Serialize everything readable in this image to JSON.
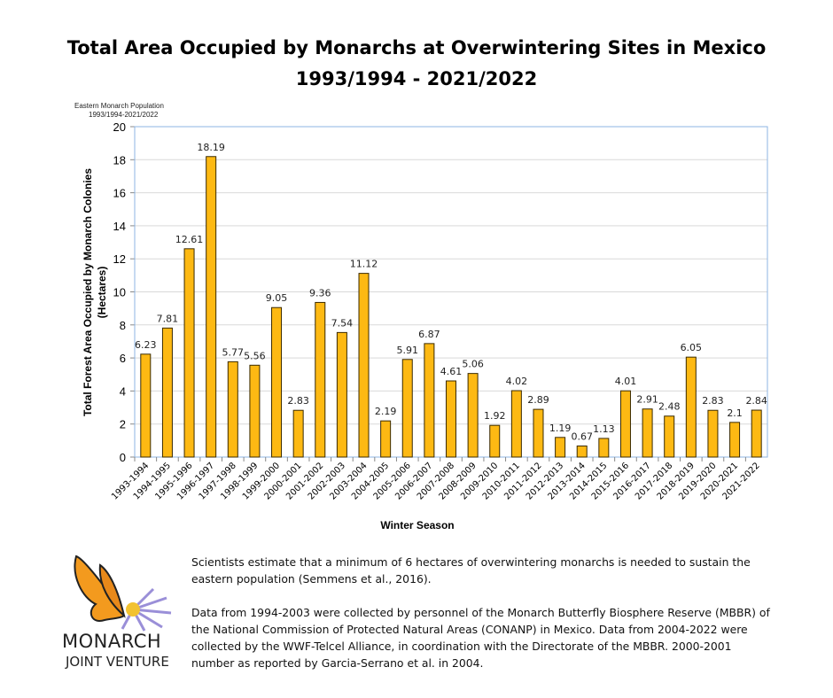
{
  "title_line1": "Total Area Occupied by Monarchs at Overwintering Sites in Mexico",
  "title_line2": "1993/1994 - 2021/2022",
  "chart_data": {
    "type": "bar",
    "subtitle_line1": "Eastern Monarch Population",
    "subtitle_line2": "1993/1994-2021/2022",
    "xlabel": "Winter Season",
    "ylabel_line1": "Total Forest Area Occupied by Monarch Colonies",
    "ylabel_line2": "(Hectares)",
    "ylim": [
      0,
      20
    ],
    "yticks": [
      0,
      2,
      4,
      6,
      8,
      10,
      12,
      14,
      16,
      18,
      20
    ],
    "grid": true,
    "bar_color": "#FDB913",
    "bar_edge": "#3a2a00",
    "categories": [
      "1993-1994",
      "1994-1995",
      "1995-1996",
      "1996-1997",
      "1997-1998",
      "1998-1999",
      "1999-2000",
      "2000-2001",
      "2001-2002",
      "2002-2003",
      "2003-2004",
      "2004-2005",
      "2005-2006",
      "2006-2007",
      "2007-2008",
      "2008-2009",
      "2009-2010",
      "2010-2011",
      "2011-2012",
      "2012-2013",
      "2013-2014",
      "2014-2015",
      "2015-2016",
      "2016-2017",
      "2017-2018",
      "2018-2019",
      "2019-2020",
      "2020-2021",
      "2021-2022"
    ],
    "values": [
      6.23,
      7.81,
      12.61,
      18.19,
      5.77,
      5.56,
      9.05,
      2.83,
      9.36,
      7.54,
      11.12,
      2.19,
      5.91,
      6.87,
      4.61,
      5.06,
      1.92,
      4.02,
      2.89,
      1.19,
      0.67,
      1.13,
      4.01,
      2.91,
      2.48,
      6.05,
      2.83,
      2.1,
      2.84
    ]
  },
  "notes": {
    "p1": "Scientists estimate that a minimum of 6 hectares of overwintering monarchs is needed to sustain the eastern population (Semmens et al., 2016).",
    "p2": "Data from 1994-2003 were collected by personnel of the Monarch Butterfly Biosphere Reserve (MBBR) of the National Commission of Protected Natural Areas (CONANP) in Mexico. Data from 2004-2022 were collected by the WWF-Telcel Alliance, in coordination with the Directorate of the MBBR. 2000-2001 number as reported by Garcia-Serrano et al. in 2004."
  },
  "logo": {
    "line1": "MONARCH",
    "line2": "JOINT VENTURE"
  }
}
